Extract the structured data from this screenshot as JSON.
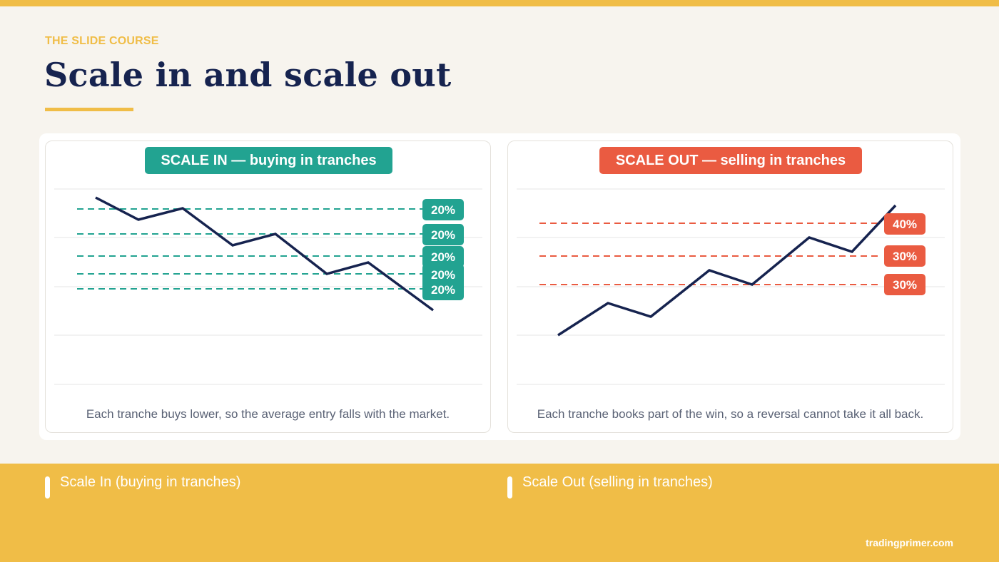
{
  "header": {
    "kicker": "THE SLIDE COURSE",
    "title": "Scale in and scale out"
  },
  "colors": {
    "accent": "#f0bd47",
    "navy": "#16234f",
    "teal": "#22a391",
    "coral": "#ea5b41"
  },
  "panels": [
    {
      "badge": "SCALE IN — buying in tranches",
      "caption": "Each tranche buys lower, so the average entry falls with the market.",
      "tranches": [
        "20%",
        "20%",
        "20%",
        "20%",
        "20%"
      ]
    },
    {
      "badge": "SCALE OUT — selling in tranches",
      "caption": "Each tranche books part of the win, so a reversal cannot take it all back.",
      "tranches": [
        "40%",
        "30%",
        "30%"
      ]
    }
  ],
  "legend": {
    "scale_in": "Scale In (buying in tranches)",
    "scale_out": "Scale Out (selling in tranches)"
  },
  "footer": {
    "site": "tradingprimer.com"
  }
}
